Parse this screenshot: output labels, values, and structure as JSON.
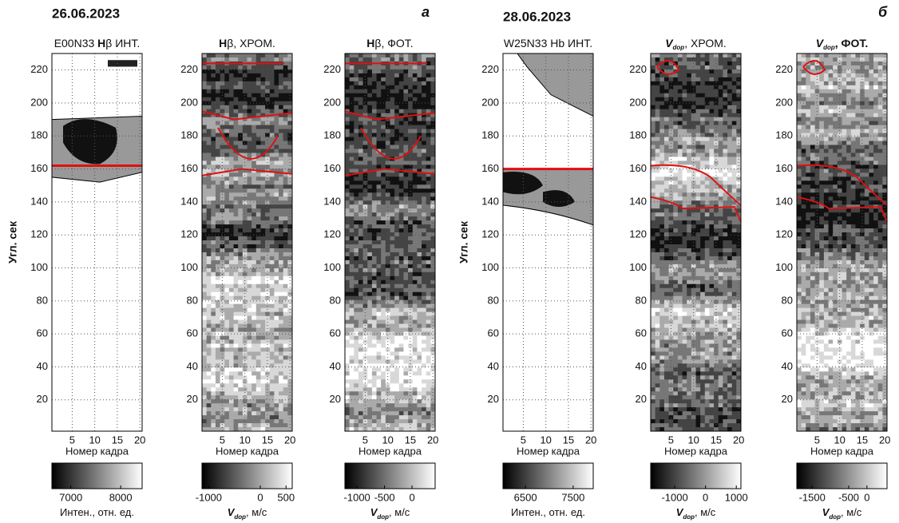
{
  "figure": {
    "dates": [
      "26.06.2023",
      "28.06.2023"
    ],
    "panel_letters": [
      "а",
      "б"
    ]
  },
  "chart_data": [
    {
      "type": "contour",
      "title": [
        "E00N33 ",
        "H",
        "β ИНТ."
      ],
      "title_styles": [
        "normal",
        "bold",
        "normal"
      ],
      "xlabel": "Номер кадра",
      "ylabel": "Угл. сек",
      "xlim": [
        0.5,
        20.5
      ],
      "xticks": [
        5,
        10,
        15,
        20
      ],
      "ylim": [
        1,
        230
      ],
      "yticks": [
        20,
        40,
        60,
        80,
        100,
        120,
        140,
        160,
        180,
        200,
        220
      ],
      "grid": true,
      "ref_line": 162,
      "ref_color": "#e01010",
      "colorbar": {
        "clim": [
          6620,
          8430
        ],
        "ticks": [
          7000,
          8000
        ],
        "label": [
          "Интен., отн. ед."
        ],
        "label_styles": [
          "normal"
        ]
      }
    },
    {
      "type": "contour",
      "title": [
        "H",
        "β, ХРОМ."
      ],
      "title_styles": [
        "bold",
        "normal"
      ],
      "xlabel": "Номер кадра",
      "xlim": [
        0.5,
        20.5
      ],
      "xticks": [
        5,
        10,
        15,
        20
      ],
      "ylim": [
        1,
        230
      ],
      "yticks": [
        20,
        40,
        60,
        80,
        100,
        120,
        140,
        160,
        180,
        200,
        220
      ],
      "grid": true,
      "colorbar": {
        "clim": [
          -1130,
          620
        ],
        "ticks": [
          -1000,
          0,
          500
        ],
        "label": [
          "V",
          "dop",
          ", м/с"
        ],
        "label_styles": [
          "italic-bold",
          "sub",
          "normal"
        ]
      }
    },
    {
      "type": "contour",
      "title": [
        "H",
        "β, ФОТ."
      ],
      "title_styles": [
        "bold",
        "normal"
      ],
      "xlabel": "Номер кадра",
      "xlim": [
        0.5,
        20.5
      ],
      "xticks": [
        5,
        10,
        15,
        20
      ],
      "ylim": [
        1,
        230
      ],
      "yticks": [
        20,
        40,
        60,
        80,
        100,
        120,
        140,
        160,
        180,
        200,
        220
      ],
      "grid": true,
      "colorbar": {
        "clim": [
          -1220,
          420
        ],
        "ticks": [
          -1000,
          -500,
          0
        ],
        "label": [
          "V",
          "dop",
          ", м/с"
        ],
        "label_styles": [
          "italic-bold",
          "sub",
          "normal"
        ]
      }
    },
    {
      "type": "contour",
      "title": [
        "W25N33 Hb ИНТ."
      ],
      "title_styles": [
        "normal"
      ],
      "xlabel": "Номер кадра",
      "ylabel": "Угл. сек",
      "xlim": [
        0.5,
        20.5
      ],
      "xticks": [
        5,
        10,
        15,
        20
      ],
      "ylim": [
        1,
        230
      ],
      "yticks": [
        20,
        40,
        60,
        80,
        100,
        120,
        140,
        160,
        180,
        200,
        220
      ],
      "grid": true,
      "ref_line": 160,
      "ref_color": "#e01010",
      "colorbar": {
        "clim": [
          6030,
          7920
        ],
        "ticks": [
          6500,
          7500
        ],
        "label": [
          "Интен., отн. ед."
        ],
        "label_styles": [
          "normal"
        ]
      }
    },
    {
      "type": "contour",
      "title": [
        "V",
        "dop",
        ", ХРОМ."
      ],
      "title_styles": [
        "italic-bold",
        "sub",
        "normal"
      ],
      "xlabel": "Номер кадра",
      "xlim": [
        0.5,
        20.5
      ],
      "xticks": [
        5,
        10,
        15,
        20
      ],
      "ylim": [
        1,
        230
      ],
      "yticks": [
        20,
        40,
        60,
        80,
        100,
        120,
        140,
        160,
        180,
        200,
        220
      ],
      "grid": true,
      "colorbar": {
        "clim": [
          -1780,
          1150
        ],
        "ticks": [
          -1000,
          0,
          1000
        ],
        "label": [
          "V",
          "dop",
          ", м/с"
        ],
        "label_styles": [
          "italic-bold",
          "sub",
          "normal"
        ]
      }
    },
    {
      "type": "contour",
      "title": [
        "V",
        "dop",
        ", ФОТ."
      ],
      "title_styles": [
        "italic-bold",
        "sub",
        "bold"
      ],
      "xlabel": "Номер кадра",
      "xlim": [
        0.5,
        20.5
      ],
      "xticks": [
        5,
        10,
        15,
        20
      ],
      "ylim": [
        1,
        230
      ],
      "yticks": [
        20,
        40,
        60,
        80,
        100,
        120,
        140,
        160,
        180,
        200,
        220
      ],
      "grid": true,
      "colorbar": {
        "clim": [
          -1920,
          550
        ],
        "ticks": [
          -1500,
          -500,
          0
        ],
        "label": [
          "V",
          "dop",
          ", м/с"
        ],
        "label_styles": [
          "italic-bold",
          "sub",
          "normal"
        ]
      }
    }
  ]
}
